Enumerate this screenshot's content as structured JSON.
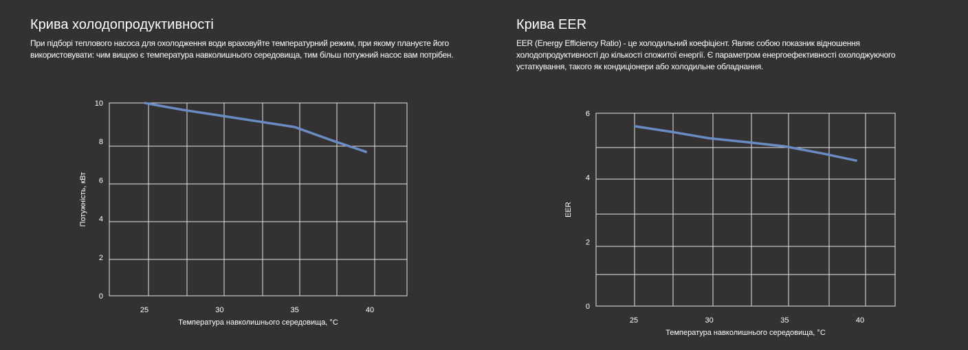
{
  "sections": [
    {
      "title": "Крива холодопродуктивності",
      "description": "При підборі теплового насоса для охолодження води враховуйте температурний режим, при якому плануєте його використовувати: чим вищою є температура навколишнього середовища, тим більш потужний насос вам потрібен."
    },
    {
      "title": "Крива EER",
      "description": "EER (Energy Efficiency Ratio) - це холодильний коефіцієнт. Являє собою показник відношення холодопродуктивності до кількості спожитої енергії. Є параметром енергоефективності охолоджуючого устаткування, такого як кондиціонери або холодильне обладнання."
    }
  ],
  "line_color": "#6a8cc4",
  "chart_data": [
    {
      "type": "line",
      "title": "Крива холодопродуктивності",
      "xlabel": "Температура навколишнього середовища, °C",
      "ylabel": "Потужність, кВт",
      "x_ticks": [
        25,
        30,
        35,
        40
      ],
      "y_ticks": [
        0,
        2,
        4,
        6,
        8,
        10
      ],
      "ylim": [
        0,
        10
      ],
      "grid": true,
      "x": [
        25,
        27.5,
        30,
        32.5,
        35,
        37.5,
        39.8
      ],
      "y": [
        10,
        9.65,
        9.35,
        9.05,
        8.75,
        8.05,
        7.45
      ]
    },
    {
      "type": "line",
      "title": "Крива EER",
      "xlabel": "Температура навколишнього середовища, °C",
      "ylabel": "EER",
      "x_ticks": [
        25,
        30,
        35,
        40
      ],
      "y_ticks": [
        0,
        2,
        4,
        6
      ],
      "ylim": [
        0,
        6
      ],
      "grid": true,
      "x": [
        25,
        27.5,
        30,
        32.5,
        35,
        37.5,
        39.8
      ],
      "y": [
        5.6,
        5.42,
        5.22,
        5.1,
        4.97,
        4.75,
        4.52
      ]
    }
  ]
}
